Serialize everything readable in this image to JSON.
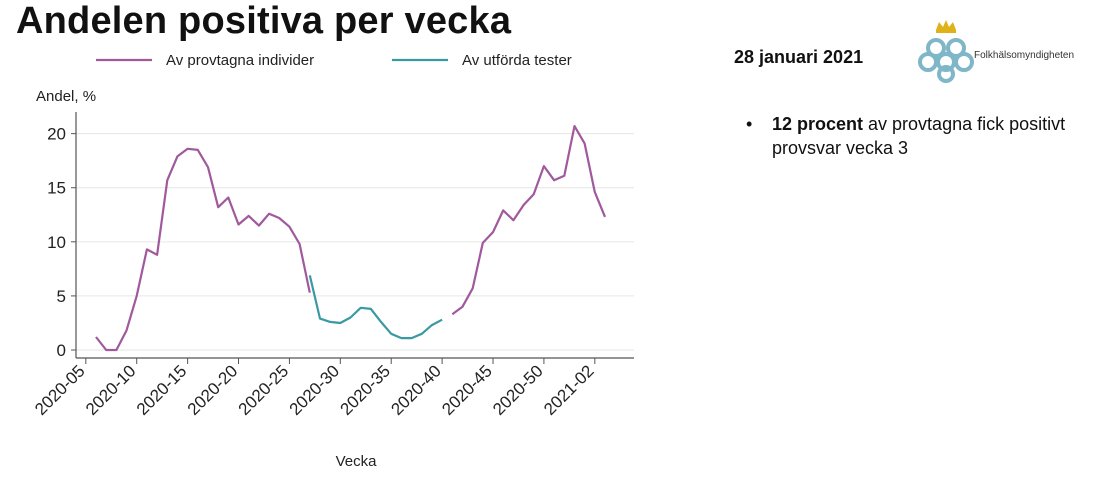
{
  "slide": {
    "title": "Andelen positiva per vecka",
    "date": "28 januari 2021",
    "org_name": "Folkhälsomyndigheten",
    "bullet_bold": "12 procent",
    "bullet_rest": " av provtagna fick positivt provsvar vecka 3"
  },
  "colors": {
    "individer": "#a0599c",
    "tester": "#3a9aa3",
    "grid": "#e6e6e6",
    "axis": "#555555",
    "logo_blue": "#7fb6c8",
    "logo_gold": "#e0b21a"
  },
  "chart_data": {
    "type": "line",
    "ylabel": "Andel, %",
    "xlabel": "Vecka",
    "ylim": [
      0,
      22
    ],
    "yticks": [
      0,
      5,
      10,
      15,
      20
    ],
    "grid": true,
    "legend_position": "top",
    "x": [
      "2020-06",
      "2020-07",
      "2020-08",
      "2020-09",
      "2020-10",
      "2020-11",
      "2020-12",
      "2020-13",
      "2020-14",
      "2020-15",
      "2020-16",
      "2020-17",
      "2020-18",
      "2020-19",
      "2020-20",
      "2020-21",
      "2020-22",
      "2020-23",
      "2020-24",
      "2020-25",
      "2020-26",
      "2020-27",
      "2020-28",
      "2020-29",
      "2020-30",
      "2020-31",
      "2020-32",
      "2020-33",
      "2020-34",
      "2020-35",
      "2020-36",
      "2020-37",
      "2020-38",
      "2020-39",
      "2020-40",
      "2020-41",
      "2020-42",
      "2020-43",
      "2020-44",
      "2020-45",
      "2020-46",
      "2020-47",
      "2020-48",
      "2020-49",
      "2020-50",
      "2020-51",
      "2020-52",
      "2020-53",
      "2021-01",
      "2021-02",
      "2021-03"
    ],
    "xtick_labels": [
      "2020-05",
      "2020-10",
      "2020-15",
      "2020-20",
      "2020-25",
      "2020-30",
      "2020-35",
      "2020-40",
      "2020-45",
      "2020-50",
      "2021-02"
    ],
    "series": [
      {
        "name": "Av provtagna individer",
        "values": [
          1.2,
          0,
          0,
          1.8,
          5,
          9.3,
          8.8,
          15.7,
          17.9,
          18.6,
          18.5,
          16.9,
          13.2,
          14.1,
          11.6,
          12.4,
          11.5,
          12.6,
          12.2,
          11.4,
          9.8,
          5.3,
          null,
          null,
          null,
          null,
          null,
          null,
          null,
          null,
          null,
          null,
          null,
          null,
          null,
          3.3,
          4,
          5.7,
          9.9,
          10.9,
          12.9,
          12,
          13.4,
          14.4,
          17,
          15.7,
          16.1,
          20.7,
          19.1,
          14.6,
          12.3
        ]
      },
      {
        "name": "Av utförda tester",
        "values": [
          null,
          null,
          null,
          null,
          null,
          null,
          null,
          null,
          null,
          null,
          null,
          null,
          null,
          null,
          null,
          null,
          null,
          null,
          null,
          null,
          null,
          6.9,
          2.9,
          2.6,
          2.5,
          3,
          3.9,
          3.8,
          2.6,
          1.5,
          1.1,
          1.1,
          1.5,
          2.3,
          2.8,
          null,
          null,
          null,
          null,
          null,
          null,
          null,
          null,
          null,
          null,
          null,
          null,
          null,
          null,
          null,
          null
        ]
      }
    ]
  }
}
